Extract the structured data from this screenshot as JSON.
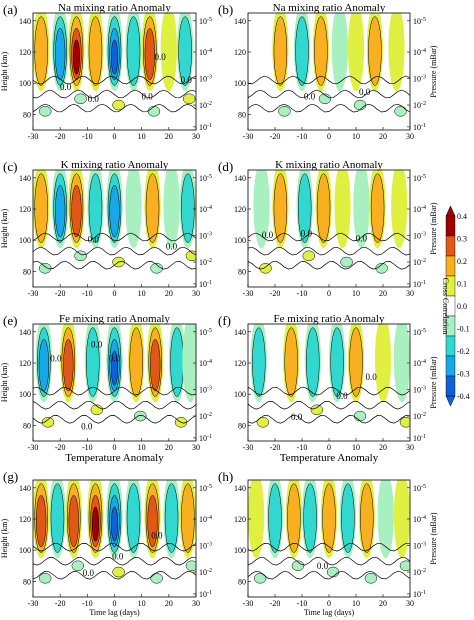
{
  "figure": {
    "colorbar": {
      "label": "Cross Correlation",
      "ticks": [
        "0.4",
        "0.3",
        "0.2",
        "0.1",
        "0.0",
        "-0.1",
        "-0.2",
        "-0.3",
        "-0.4"
      ],
      "levels": [
        -0.4,
        -0.3,
        -0.2,
        -0.1,
        0.0,
        0.1,
        0.2,
        0.3,
        0.4
      ],
      "colors": [
        "#1060d8",
        "#18a8e8",
        "#30d8d0",
        "#a8f0c0",
        "#ffffff",
        "#e0f040",
        "#f8b020",
        "#e05818",
        "#a00000"
      ]
    }
  },
  "chart_data": [
    {
      "type": "heatmap",
      "panel": "(a)",
      "title": "Na mixing ratio Anomaly",
      "ylabel": "Height (km)",
      "xlabel": "",
      "y2label": "",
      "x": [
        -30,
        -20,
        -10,
        0,
        10,
        20,
        30
      ],
      "y": [
        80,
        100,
        120,
        140
      ],
      "xlim": [
        -30,
        30
      ],
      "ylim": [
        70,
        145
      ],
      "contour_labels": [
        "0.0",
        "0.0",
        "0.0",
        "0.0",
        "0.0"
      ],
      "bands": [
        {
          "x": -27,
          "lvl": 2
        },
        {
          "x": -20,
          "lvl": -3
        },
        {
          "x": -14,
          "lvl": 4
        },
        {
          "x": -7,
          "lvl": 2
        },
        {
          "x": 0,
          "lvl": -4
        },
        {
          "x": 7,
          "lvl": -2
        },
        {
          "x": 13,
          "lvl": 3
        },
        {
          "x": 20,
          "lvl": 1
        },
        {
          "x": 26,
          "lvl": -2
        }
      ]
    },
    {
      "type": "heatmap",
      "panel": "(b)",
      "title": "Na mixing ratio Anomaly",
      "ylabel": "",
      "xlabel": "",
      "y2label": "Pressure (mBar)",
      "x": [
        -30,
        -20,
        -10,
        0,
        10,
        20,
        30
      ],
      "y": [
        80,
        100,
        120,
        140
      ],
      "xlim": [
        -30,
        30
      ],
      "ylim": [
        70,
        145
      ],
      "contour_labels": [
        "0.0",
        "0.0"
      ],
      "bands": [
        {
          "x": -18,
          "lvl": 2
        },
        {
          "x": -10,
          "lvl": -2
        },
        {
          "x": -3,
          "lvl": 2
        },
        {
          "x": 4,
          "lvl": -1
        },
        {
          "x": 10,
          "lvl": 1
        },
        {
          "x": 17,
          "lvl": 2
        },
        {
          "x": 25,
          "lvl": 1
        }
      ]
    },
    {
      "type": "heatmap",
      "panel": "(c)",
      "title": "K mixing ratio Anomaly",
      "ylabel": "Height (km)",
      "xlabel": "",
      "y2label": "",
      "x": [
        -30,
        -20,
        -10,
        0,
        10,
        20,
        30
      ],
      "y": [
        80,
        100,
        120,
        140
      ],
      "xlim": [
        -30,
        30
      ],
      "ylim": [
        70,
        145
      ],
      "contour_labels": [
        "0.0",
        "0.0"
      ],
      "bands": [
        {
          "x": -27,
          "lvl": 2
        },
        {
          "x": -20,
          "lvl": -3
        },
        {
          "x": -14,
          "lvl": 3
        },
        {
          "x": -7,
          "lvl": -2
        },
        {
          "x": 0,
          "lvl": -3
        },
        {
          "x": 7,
          "lvl": -1
        },
        {
          "x": 14,
          "lvl": 2
        },
        {
          "x": 21,
          "lvl": -1
        },
        {
          "x": 27,
          "lvl": -2
        }
      ]
    },
    {
      "type": "heatmap",
      "panel": "(d)",
      "title": "K mixing ratio Anomaly",
      "ylabel": "",
      "xlabel": "",
      "y2label": "Pressure (mBar)",
      "x": [
        -30,
        -20,
        -10,
        0,
        10,
        20,
        30
      ],
      "y": [
        80,
        100,
        120,
        140
      ],
      "xlim": [
        -30,
        30
      ],
      "ylim": [
        70,
        145
      ],
      "contour_labels": [
        "0.0",
        "0.0",
        "0.0"
      ],
      "bands": [
        {
          "x": -25,
          "lvl": -1
        },
        {
          "x": -18,
          "lvl": 2
        },
        {
          "x": -9,
          "lvl": -2
        },
        {
          "x": -2,
          "lvl": 2
        },
        {
          "x": 5,
          "lvl": 1
        },
        {
          "x": 12,
          "lvl": -1
        },
        {
          "x": 18,
          "lvl": 2
        },
        {
          "x": 26,
          "lvl": 1
        }
      ]
    },
    {
      "type": "heatmap",
      "panel": "(e)",
      "title": "Fe mixing ratio Anomaly",
      "ylabel": "Height (km)",
      "xlabel": "Temperature Anomaly",
      "y2label": "",
      "x": [
        -30,
        -20,
        -10,
        0,
        10,
        20,
        30
      ],
      "y": [
        80,
        100,
        120,
        140
      ],
      "xlim": [
        -30,
        30
      ],
      "ylim": [
        70,
        145
      ],
      "contour_labels": [
        "0.0",
        "0.0",
        "0.0",
        "0.0"
      ],
      "bands": [
        {
          "x": -26,
          "lvl": -3
        },
        {
          "x": -17,
          "lvl": 3
        },
        {
          "x": -8,
          "lvl": -2
        },
        {
          "x": 0,
          "lvl": -4
        },
        {
          "x": 8,
          "lvl": 2
        },
        {
          "x": 15,
          "lvl": 3
        },
        {
          "x": 23,
          "lvl": -2
        },
        {
          "x": 28,
          "lvl": -1
        }
      ]
    },
    {
      "type": "heatmap",
      "panel": "(f)",
      "title": "Fe mixing ratio Anomaly",
      "ylabel": "",
      "xlabel": "Temperature Anomaly",
      "y2label": "Pressure (mBar)",
      "x": [
        -30,
        -20,
        -10,
        0,
        10,
        20,
        30
      ],
      "y": [
        80,
        100,
        120,
        140
      ],
      "xlim": [
        -30,
        30
      ],
      "ylim": [
        70,
        145
      ],
      "contour_labels": [
        "0.0",
        "0.0",
        "0.0"
      ],
      "bands": [
        {
          "x": -26,
          "lvl": -2
        },
        {
          "x": -14,
          "lvl": 2
        },
        {
          "x": -6,
          "lvl": -2
        },
        {
          "x": 3,
          "lvl": -2
        },
        {
          "x": 10,
          "lvl": 2
        },
        {
          "x": 20,
          "lvl": 1
        },
        {
          "x": 27,
          "lvl": -1
        }
      ]
    },
    {
      "type": "heatmap",
      "panel": "(g)",
      "title": "",
      "ylabel": "Height (km)",
      "xlabel": "Time lag (days)",
      "y2label": "",
      "x": [
        -30,
        -20,
        -10,
        0,
        10,
        20,
        30
      ],
      "y": [
        80,
        100,
        120,
        140
      ],
      "xlim": [
        -30,
        30
      ],
      "ylim": [
        70,
        145
      ],
      "contour_labels": [
        "0.0",
        "0.0",
        "0.0"
      ],
      "bands": [
        {
          "x": -27,
          "lvl": 3
        },
        {
          "x": -21,
          "lvl": -2
        },
        {
          "x": -15,
          "lvl": 3
        },
        {
          "x": -7,
          "lvl": 4
        },
        {
          "x": 0,
          "lvl": -4
        },
        {
          "x": 7,
          "lvl": -2
        },
        {
          "x": 14,
          "lvl": 3
        },
        {
          "x": 21,
          "lvl": -2
        },
        {
          "x": 27,
          "lvl": 2
        }
      ]
    },
    {
      "type": "heatmap",
      "panel": "(h)",
      "title": "",
      "ylabel": "",
      "xlabel": "Time lag (days)",
      "y2label": "Pressure (mBar)",
      "x": [
        -30,
        -20,
        -10,
        0,
        10,
        20,
        30
      ],
      "y": [
        80,
        100,
        120,
        140
      ],
      "xlim": [
        -30,
        30
      ],
      "ylim": [
        70,
        145
      ],
      "contour_labels": [
        "0.0"
      ],
      "bands": [
        {
          "x": -27,
          "lvl": 1
        },
        {
          "x": -20,
          "lvl": -2
        },
        {
          "x": -13,
          "lvl": 2
        },
        {
          "x": -7,
          "lvl": -2
        },
        {
          "x": 0,
          "lvl": 2
        },
        {
          "x": 7,
          "lvl": -2
        },
        {
          "x": 14,
          "lvl": 2
        },
        {
          "x": 21,
          "lvl": -1
        },
        {
          "x": 27,
          "lvl": 1
        }
      ]
    }
  ],
  "axes": {
    "x_ticks": [
      "-30",
      "-20",
      "-10",
      "0",
      "10",
      "20",
      "30"
    ],
    "y_ticks": [
      "80",
      "100",
      "120",
      "140"
    ],
    "p_ticks": [
      {
        "base": "10",
        "exp": "-5",
        "height": 140
      },
      {
        "base": "10",
        "exp": "-4",
        "height": 120
      },
      {
        "base": "10",
        "exp": "-3",
        "height": 103
      },
      {
        "base": "10",
        "exp": "-2",
        "height": 86
      },
      {
        "base": "10",
        "exp": "-1",
        "height": 72
      }
    ]
  }
}
